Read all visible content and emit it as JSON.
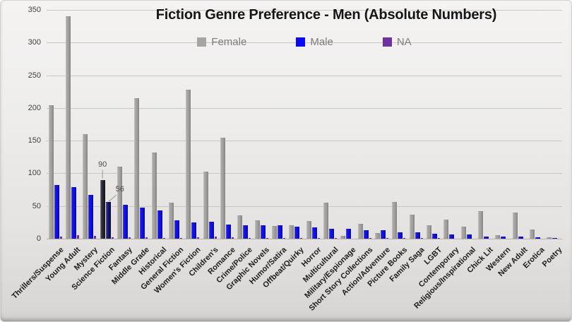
{
  "title": "Fiction Genre Preference - Men (Absolute Numbers)",
  "legend": {
    "items": [
      {
        "label": "Female",
        "color": "#a7a4a1"
      },
      {
        "label": "Male",
        "color": "#0909f2"
      },
      {
        "label": "NA",
        "color": "#7030a0"
      }
    ]
  },
  "y_axis": {
    "min": 0,
    "max": 350,
    "step": 50,
    "ticks": [
      "350",
      "300",
      "250",
      "200",
      "150",
      "100",
      "50",
      "0"
    ]
  },
  "highlight": {
    "category": "Science Fiction",
    "female_color_light": "#3d3d47",
    "female_color_dark": "#17171d",
    "male_color_light": "#24248e",
    "male_color_dark": "#0e0e58",
    "female_data_label": "90",
    "male_data_label": "56"
  },
  "chart_data": {
    "type": "bar",
    "title": "Fiction Genre Preference - Men (Absolute Numbers)",
    "xlabel": "",
    "ylabel": "",
    "ylim": [
      0,
      350
    ],
    "grid": true,
    "legend_position": "top",
    "categories": [
      "Thrillers/Suspense",
      "Young Adult",
      "Mystery",
      "Science Fiction",
      "Fantasy",
      "Middle Grade",
      "Historical",
      "General Fiction",
      "Women's Fiction",
      "Children's",
      "Romance",
      "Crime/Police",
      "Graphic Novels",
      "Humor/Satira",
      "Offbeat/Quirky",
      "Horror",
      "Multicultural",
      "Military/Espionage",
      "Short Story Collections",
      "Action/Adventure",
      "Picture Books",
      "Family Saga",
      "LGBT",
      "Contemporary",
      "Religious/Inspirational",
      "Chick Lit",
      "Western",
      "New Adult",
      "Erotica",
      "Poetry"
    ],
    "series": [
      {
        "name": "Female",
        "color": "#a7a4a1",
        "values": [
          204,
          340,
          160,
          90,
          110,
          215,
          132,
          55,
          228,
          103,
          154,
          36,
          28,
          19,
          21,
          27,
          55,
          4,
          23,
          9,
          56,
          37,
          21,
          29,
          18,
          42,
          5,
          40,
          14,
          2
        ]
      },
      {
        "name": "Male",
        "color": "#1212ee",
        "values": [
          82,
          79,
          67,
          56,
          52,
          47,
          43,
          28,
          25,
          26,
          22,
          20,
          20,
          21,
          18,
          17,
          15,
          15,
          13,
          13,
          10,
          10,
          8,
          6,
          6,
          3,
          3,
          3,
          2,
          1
        ]
      },
      {
        "name": "NA",
        "color": "#7030a0",
        "values": [
          3,
          5,
          4,
          2,
          2,
          2,
          1,
          1,
          2,
          3,
          2,
          1,
          1,
          1,
          1,
          1,
          1,
          0,
          1,
          1,
          1,
          1,
          1,
          0,
          0,
          0,
          0,
          0,
          0,
          0
        ]
      }
    ],
    "annotations": [
      {
        "category": "Science Fiction",
        "series": "Female",
        "label": "90",
        "value": 90
      },
      {
        "category": "Science Fiction",
        "series": "Male",
        "label": "56",
        "value": 56
      }
    ],
    "highlighted_category": "Science Fiction"
  }
}
